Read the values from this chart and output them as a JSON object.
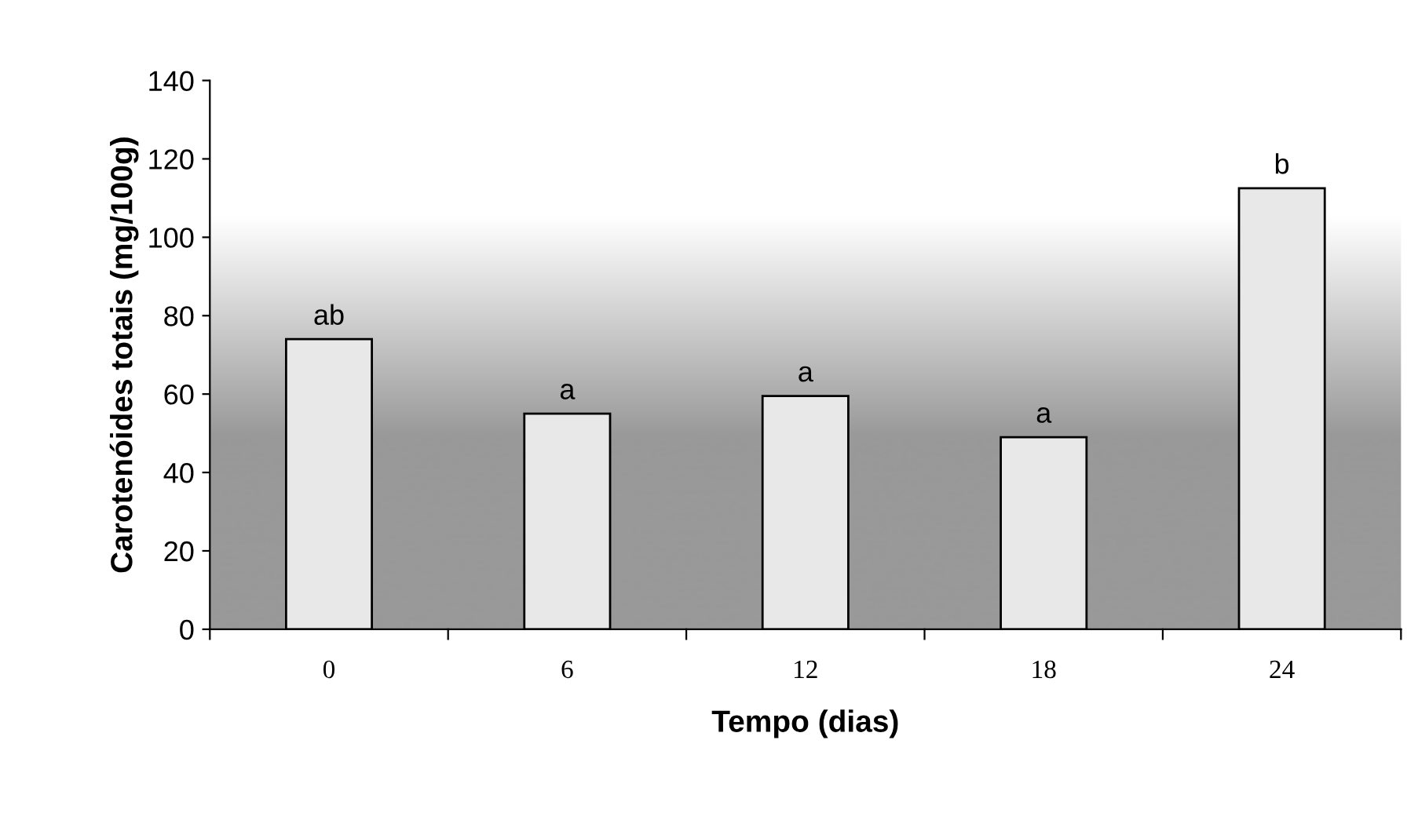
{
  "chart_data": {
    "type": "bar",
    "xlabel": "Tempo (dias)",
    "ylabel": "Carotenóides totais (mg/100g)",
    "categories": [
      "0",
      "6",
      "12",
      "18",
      "24"
    ],
    "values": [
      74,
      55,
      59.5,
      49,
      112.5
    ],
    "color": "#e8e8e8",
    "ylim": [
      0,
      140
    ],
    "yticks": [
      0,
      20,
      40,
      60,
      80,
      100,
      120,
      140
    ],
    "grid": false,
    "legend": false,
    "annotations": [
      {
        "text": "ab",
        "x": "0",
        "y": 74
      },
      {
        "text": "a",
        "x": "6",
        "y": 55
      },
      {
        "text": "a",
        "x": "12",
        "y": 59.5
      },
      {
        "text": "a",
        "x": "18",
        "y": 49
      },
      {
        "text": "b",
        "x": "24",
        "y": 112.5
      }
    ]
  }
}
